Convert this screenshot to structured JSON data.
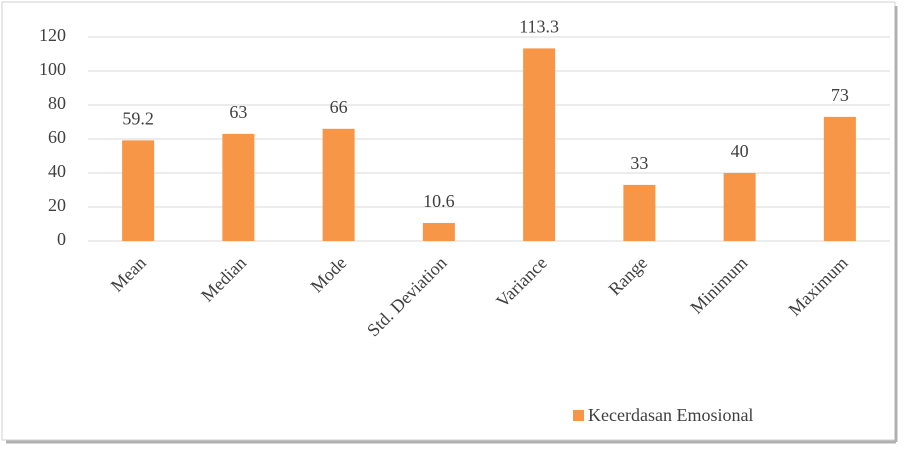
{
  "chart_data": {
    "type": "bar",
    "categories": [
      "Mean",
      "Median",
      "Mode",
      "Std. Deviation",
      "Variance",
      "Range",
      "Minimum",
      "Maximum"
    ],
    "series": [
      {
        "name": "Kecerdasan Emosional",
        "color": "#f79646",
        "values": [
          59.2,
          63,
          66,
          10.6,
          113.3,
          33,
          40,
          73
        ]
      }
    ],
    "ylim": [
      0,
      120
    ],
    "yticks": [
      0,
      20,
      40,
      60,
      80,
      100,
      120
    ],
    "grid": true,
    "legend": "bottom"
  }
}
